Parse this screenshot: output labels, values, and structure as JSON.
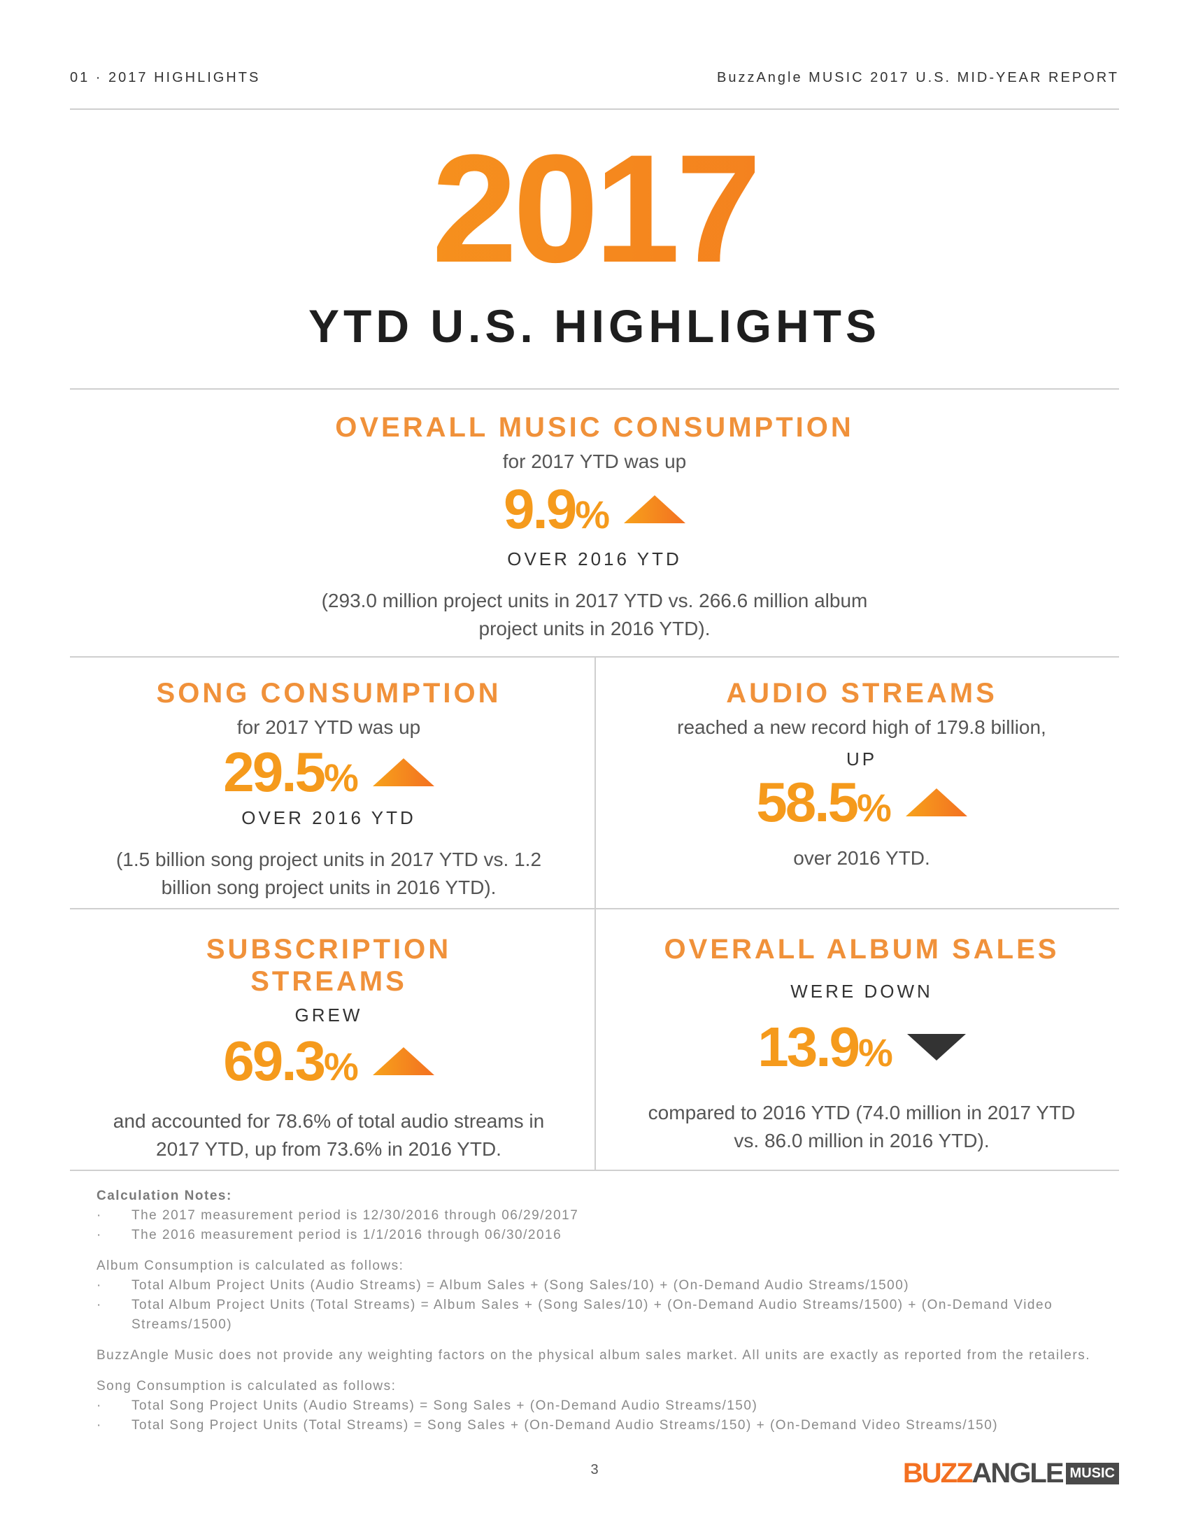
{
  "header": {
    "left": "01 · 2017 HIGHLIGHTS",
    "right": "BuzzAngle MUSIC 2017 U.S. MID-YEAR REPORT"
  },
  "hero": {
    "year": "2017",
    "title": "YTD U.S. HIGHLIGHTS"
  },
  "overall": {
    "heading": "OVERALL MUSIC CONSUMPTION",
    "intro": "for 2017 YTD was up",
    "value": "9.9",
    "unit": "%",
    "direction": "up",
    "compare": "OVER 2016 YTD",
    "detail_line1": "(293.0 million project units in 2017 YTD vs. 266.6 million album",
    "detail_line2": "project units in 2016 YTD)."
  },
  "song": {
    "heading": "SONG CONSUMPTION",
    "intro": "for 2017 YTD was up",
    "value": "29.5",
    "unit": "%",
    "direction": "up",
    "compare": "OVER 2016 YTD",
    "detail_line1": "(1.5 billion song project units in 2017 YTD vs. 1.2",
    "detail_line2": "billion song project units in 2016 YTD)."
  },
  "audio": {
    "heading": "AUDIO STREAMS",
    "intro": "reached a new record high of 179.8 billion,",
    "up_label": "UP",
    "value": "58.5",
    "unit": "%",
    "direction": "up",
    "detail_line1": "over 2016 YTD."
  },
  "subscription": {
    "heading_line1": "SUBSCRIPTION",
    "heading_line2": "STREAMS",
    "intro": "GREW",
    "value": "69.3",
    "unit": "%",
    "direction": "up",
    "detail_line1": "and accounted for 78.6% of total audio streams in",
    "detail_line2": "2017 YTD, up from 73.6% in 2016 YTD."
  },
  "album": {
    "heading": "OVERALL ALBUM SALES",
    "intro": "WERE DOWN",
    "value": "13.9",
    "unit": "%",
    "direction": "down",
    "detail_line1": "compared to 2016 YTD (74.0 million in 2017 YTD",
    "detail_line2": "vs. 86.0 million in 2016 YTD)."
  },
  "notes": {
    "title": "Calculation Notes:",
    "period_2017": "The 2017 measurement period is 12/30/2016 through 06/29/2017",
    "period_2016": "The 2016 measurement period is 1/1/2016 through 06/30/2016",
    "album_intro": "Album Consumption is calculated as follows:",
    "album_b1": "Total Album Project Units (Audio Streams) = Album Sales + (Song Sales/10) + (On-Demand Audio Streams/1500)",
    "album_b2": "Total Album Project Units (Total Streams) = Album Sales + (Song Sales/10) + (On-Demand Audio Streams/1500) + (On-Demand Video Streams/1500)",
    "weighting": "BuzzAngle Music does not provide any weighting factors on the physical album sales market. All units are exactly as reported from the retailers.",
    "song_intro": "Song Consumption is calculated as follows:",
    "song_b1": "Total Song Project Units (Audio Streams) = Song Sales + (On-Demand Audio Streams/150)",
    "song_b2": "Total Song Project Units (Total Streams) = Song Sales + (On-Demand Audio Streams/150) + (On-Demand Video Streams/150)"
  },
  "footer": {
    "page_number": "3",
    "logo_buzz": "BUZZ",
    "logo_angle": "ANGLE",
    "logo_music": "MUSIC"
  },
  "colors": {
    "accent_orange": "#f59a1c",
    "heading_orange": "#f0913a",
    "down_arrow": "#333333"
  }
}
